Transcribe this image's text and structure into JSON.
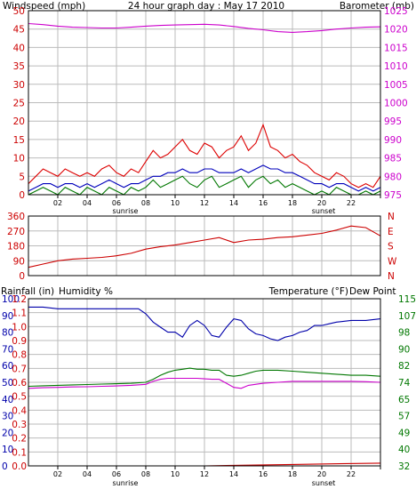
{
  "header": {
    "title": "24 hour graph day : May 17 2010",
    "left_label": "Windspeed (mph)",
    "right_label": "Barometer (mb)"
  },
  "colors": {
    "wind": "#dd0000",
    "wind_avg": "#0000bb",
    "wind_low": "#007700",
    "baro": "#cc00cc",
    "direction": "#cc0000",
    "rain": "#cc0000",
    "humidity": "#0000aa",
    "temp": "#007700",
    "dew": "#cc00cc",
    "grid": "#bbbbbb"
  },
  "xaxis": {
    "hour_labels": [
      "02",
      "04",
      "06",
      "08",
      "10",
      "12",
      "14",
      "16",
      "18",
      "20",
      "22",
      ""
    ],
    "sunrise_label": "sunrise",
    "sunset_label": "sunset"
  },
  "chart_data": [
    {
      "type": "line",
      "title": "24 hour graph day : May 17 2010",
      "x_unit": "hour",
      "xlim": [
        0,
        24
      ],
      "left_axis": {
        "label": "Windspeed (mph)",
        "ticks": [
          "0",
          "5",
          "10",
          "15",
          "20",
          "25",
          "30",
          "35",
          "40",
          "45",
          "50"
        ],
        "ylim": [
          0,
          50
        ]
      },
      "right_axis": {
        "label": "Barometer (mb)",
        "ticks": [
          "975",
          "980",
          "985",
          "990",
          "995",
          "1000",
          "1005",
          "1010",
          "1015",
          "1020",
          "1025"
        ],
        "ylim": [
          975,
          1025
        ]
      },
      "series": [
        {
          "axis": "left",
          "x": [
            0,
            0.5,
            1,
            1.5,
            2,
            2.5,
            3,
            3.5,
            4,
            4.5,
            5,
            5.5,
            6,
            6.5,
            7,
            7.5,
            8,
            8.5,
            9,
            9.5,
            10,
            10.5,
            11,
            11.5,
            12,
            12.5,
            13,
            13.5,
            14,
            14.5,
            15,
            15.5,
            16,
            16.5,
            17,
            17.5,
            18,
            18.5,
            19,
            19.5,
            20,
            20.5,
            21,
            21.5,
            22,
            22.5,
            23,
            23.5,
            24
          ],
          "y": [
            3,
            5,
            7,
            6,
            5,
            7,
            6,
            5,
            6,
            5,
            7,
            8,
            6,
            5,
            7,
            6,
            9,
            12,
            10,
            11,
            13,
            15,
            12,
            11,
            14,
            13,
            10,
            12,
            13,
            16,
            12,
            14,
            19,
            13,
            12,
            10,
            11,
            9,
            8,
            6,
            5,
            4,
            6,
            5,
            3,
            2,
            3,
            2,
            5
          ]
        },
        {
          "axis": "left",
          "x": [
            0,
            0.5,
            1,
            1.5,
            2,
            2.5,
            3,
            3.5,
            4,
            4.5,
            5,
            5.5,
            6,
            6.5,
            7,
            7.5,
            8,
            8.5,
            9,
            9.5,
            10,
            10.5,
            11,
            11.5,
            12,
            12.5,
            13,
            13.5,
            14,
            14.5,
            15,
            15.5,
            16,
            16.5,
            17,
            17.5,
            18,
            18.5,
            19,
            19.5,
            20,
            20.5,
            21,
            21.5,
            22,
            22.5,
            23,
            23.5,
            24
          ],
          "y": [
            1,
            2,
            3,
            3,
            2,
            3,
            3,
            2,
            3,
            2,
            3,
            4,
            3,
            2,
            3,
            3,
            4,
            5,
            5,
            6,
            6,
            7,
            6,
            6,
            7,
            7,
            6,
            6,
            6,
            7,
            6,
            7,
            8,
            7,
            7,
            6,
            6,
            5,
            4,
            3,
            3,
            2,
            3,
            3,
            2,
            1,
            2,
            1,
            2
          ]
        },
        {
          "axis": "left",
          "x": [
            0,
            0.5,
            1,
            1.5,
            2,
            2.5,
            3,
            3.5,
            4,
            4.5,
            5,
            5.5,
            6,
            6.5,
            7,
            7.5,
            8,
            8.5,
            9,
            9.5,
            10,
            10.5,
            11,
            11.5,
            12,
            12.5,
            13,
            13.5,
            14,
            14.5,
            15,
            15.5,
            16,
            16.5,
            17,
            17.5,
            18,
            18.5,
            19,
            19.5,
            20,
            20.5,
            21,
            21.5,
            22,
            22.5,
            23,
            23.5,
            24
          ],
          "y": [
            0,
            1,
            2,
            1,
            0,
            2,
            1,
            0,
            2,
            1,
            0,
            2,
            1,
            0,
            2,
            1,
            2,
            4,
            2,
            3,
            4,
            5,
            3,
            2,
            4,
            5,
            2,
            3,
            4,
            5,
            2,
            4,
            5,
            3,
            4,
            2,
            3,
            2,
            1,
            0,
            1,
            0,
            2,
            1,
            0,
            0,
            1,
            0,
            1
          ]
        },
        {
          "axis": "right",
          "x": [
            0,
            1,
            2,
            3,
            4,
            5,
            6,
            7,
            8,
            9,
            10,
            11,
            12,
            13,
            14,
            15,
            16,
            17,
            18,
            19,
            20,
            21,
            22,
            23,
            24
          ],
          "y": [
            1021.5,
            1021.2,
            1020.8,
            1020.5,
            1020.4,
            1020.3,
            1020.3,
            1020.5,
            1020.8,
            1021,
            1021.1,
            1021.2,
            1021.3,
            1021.1,
            1020.7,
            1020.2,
            1019.8,
            1019.3,
            1019.1,
            1019.3,
            1019.6,
            1020,
            1020.3,
            1020.5,
            1020.6
          ]
        }
      ]
    },
    {
      "type": "line",
      "x_unit": "hour",
      "xlim": [
        0,
        24
      ],
      "left_axis": {
        "ticks": [
          "0",
          "90",
          "180",
          "270",
          "360"
        ],
        "ylim": [
          0,
          360
        ]
      },
      "right_axis": {
        "ticks": [
          "N",
          "W",
          "S",
          "E",
          "N"
        ]
      },
      "series": [
        {
          "x": [
            0,
            1,
            2,
            3,
            4,
            5,
            6,
            7,
            8,
            9,
            10,
            11,
            12,
            13,
            14,
            15,
            16,
            17,
            18,
            19,
            20,
            21,
            22,
            23,
            24
          ],
          "y": [
            50,
            70,
            90,
            100,
            105,
            110,
            120,
            135,
            160,
            175,
            185,
            200,
            215,
            230,
            200,
            215,
            220,
            230,
            235,
            245,
            255,
            275,
            300,
            290,
            240
          ]
        }
      ]
    },
    {
      "type": "line",
      "x_unit": "hour",
      "xlim": [
        0,
        24
      ],
      "labels": {
        "rain": "Rainfall (in)",
        "humidity": "Humidity %",
        "temp": "Temperature (°F)",
        "dew": "Dew Point"
      },
      "rain_axis": {
        "ticks": [
          "0.0",
          "0.1",
          "0.2",
          "0.3",
          "0.4",
          "0.5",
          "0.6",
          "0.7",
          "0.8",
          "0.9",
          "1.0",
          "1.1",
          "1.2"
        ],
        "ylim": [
          0,
          1.2
        ]
      },
      "humidity_axis": {
        "ticks": [
          "0",
          "10",
          "20",
          "30",
          "40",
          "50",
          "60",
          "70",
          "80",
          "90",
          "100"
        ],
        "ylim": [
          0,
          100
        ]
      },
      "temp_axis": {
        "ticks": [
          "32",
          "40",
          "49",
          "57",
          "65",
          "74",
          "82",
          "90",
          "98",
          "107",
          "115"
        ],
        "ylim": [
          32,
          115
        ]
      },
      "series": [
        {
          "name": "Rainfall (in)",
          "axis": "rain",
          "x": [
            0,
            6,
            12,
            18,
            24
          ],
          "y": [
            0,
            0,
            0,
            0.01,
            0.02
          ]
        },
        {
          "name": "Humidity %",
          "axis": "humidity",
          "x": [
            0,
            1,
            2,
            3,
            4,
            5,
            6,
            7,
            7.5,
            8,
            8.5,
            9,
            9.5,
            10,
            10.5,
            11,
            11.5,
            12,
            12.5,
            13,
            13.5,
            14,
            14.5,
            15,
            15.5,
            16,
            16.5,
            17,
            17.5,
            18,
            18.5,
            19,
            19.5,
            20,
            20.5,
            21,
            22,
            23,
            24
          ],
          "y": [
            95,
            95,
            94,
            94,
            94,
            94,
            94,
            94,
            94,
            91,
            86,
            83,
            80,
            80,
            77,
            84,
            87,
            84,
            78,
            77,
            83,
            88,
            87,
            82,
            79,
            78,
            76,
            75,
            77,
            78,
            80,
            81,
            84,
            84,
            85,
            86,
            87,
            87,
            88
          ]
        },
        {
          "name": "Temperature (°F)",
          "axis": "temp",
          "x": [
            0,
            1,
            2,
            3,
            4,
            5,
            6,
            7,
            8,
            8.5,
            9,
            9.5,
            10,
            10.5,
            11,
            11.5,
            12,
            12.5,
            13,
            13.5,
            14,
            14.5,
            15,
            15.5,
            16,
            17,
            18,
            19,
            20,
            21,
            22,
            23,
            24
          ],
          "y": [
            71.5,
            71.8,
            72,
            72.2,
            72.4,
            72.6,
            72.8,
            73,
            73.5,
            75,
            77,
            78.5,
            79.5,
            80,
            80.5,
            80,
            80,
            79.5,
            79.5,
            77,
            76.5,
            77,
            78,
            79,
            79.5,
            79.5,
            79,
            78.5,
            78,
            77.5,
            77,
            77,
            76.5
          ]
        },
        {
          "name": "Dew Point",
          "axis": "temp",
          "x": [
            0,
            1,
            2,
            3,
            4,
            5,
            6,
            7,
            8,
            8.5,
            9,
            9.5,
            10,
            10.5,
            11,
            11.5,
            12,
            12.5,
            13,
            13.5,
            14,
            14.5,
            15,
            16,
            17,
            18,
            19,
            20,
            21,
            22,
            23,
            24
          ],
          "y": [
            70.5,
            70.8,
            71,
            71.2,
            71.3,
            71.5,
            71.7,
            72,
            72.5,
            74,
            75,
            75.5,
            75.5,
            75.5,
            75.5,
            75.5,
            75.2,
            75,
            75,
            73,
            71,
            70.5,
            72,
            73,
            73.5,
            74,
            74,
            74,
            74,
            74,
            73.8,
            73.5
          ]
        }
      ]
    }
  ]
}
